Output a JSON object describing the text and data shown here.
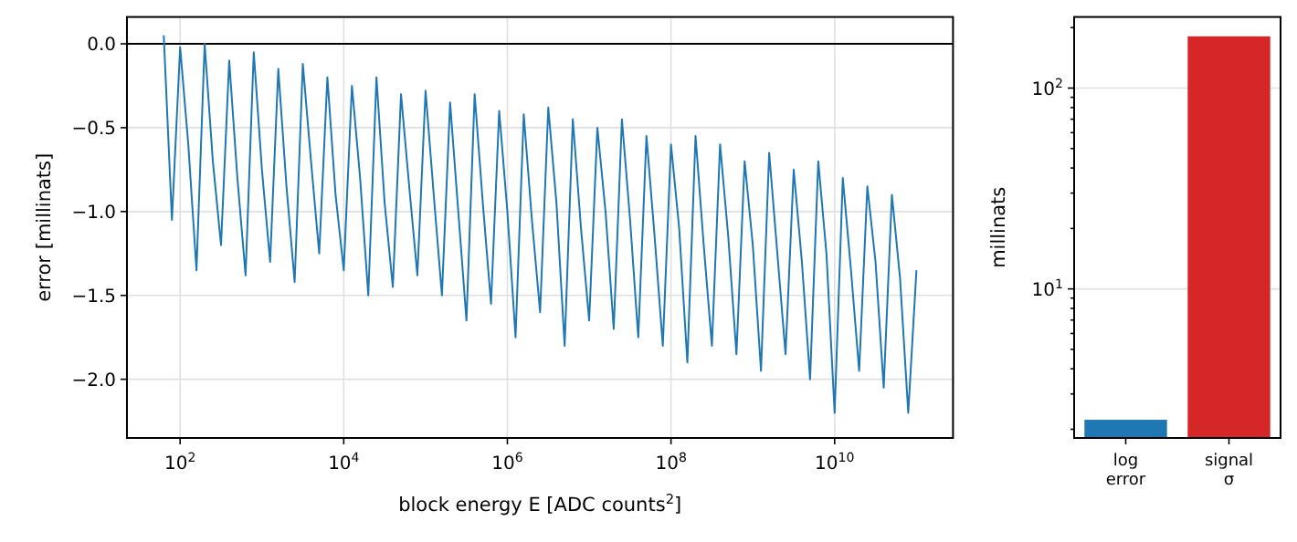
{
  "chart_data": [
    {
      "type": "line",
      "xlabel": "block energy E [ADC counts$^{2}$]",
      "ylabel": "error [millinats]",
      "x": [
        63.1,
        79.43,
        100.0,
        125.9,
        158.5,
        199.5,
        251.2,
        316.2,
        398.1,
        501.2,
        631.0,
        794.3,
        1000.0,
        1259.0,
        1585.0,
        1995.0,
        2512.0,
        3162.0,
        3981.0,
        5012.0,
        6310.0,
        7943.0,
        10000.0,
        12590.0,
        15850.0,
        19950.0,
        25120.0,
        31620.0,
        39810.0,
        50120.0,
        63100.0,
        79430.0,
        100000.0,
        125900.0,
        158500.0,
        199500.0,
        251200.0,
        316200.0,
        398100.0,
        501200.0,
        631000.0,
        794300.0,
        1000000.0,
        1259000.0,
        1585000.0,
        1995000.0,
        2512000.0,
        3162000.0,
        3981000.0,
        5012000.0,
        6310000.0,
        7943000.0,
        10000000.0,
        12590000.0,
        15850000.0,
        19950000.0,
        25120000.0,
        31620000.0,
        39810000.0,
        50120000.0,
        63100000.0,
        79430000.0,
        100000000.0,
        125900000.0,
        158500000.0,
        199500000.0,
        251200000.0,
        316200000.0,
        398100000.0,
        501200000.0,
        631000000.0,
        794300000.0,
        1000000000.0,
        1259000000.0,
        1585000000.0,
        1995000000.0,
        2512000000.0,
        3162000000.0,
        3981000000.0,
        5012000000.0,
        6310000000.0,
        7943000000.0,
        10000000000.0,
        12590000000.0,
        15850000000.0,
        19950000000.0,
        25120000000.0,
        31620000000.0,
        39810000000.0,
        50120000000.0,
        63100000000.0,
        79430000000.0,
        100000000000.0
      ],
      "values": [
        0.05,
        -1.05,
        -0.02,
        -0.6,
        -1.35,
        0.0,
        -0.7,
        -1.2,
        -0.1,
        -0.8,
        -1.38,
        -0.05,
        -0.75,
        -1.3,
        -0.15,
        -0.85,
        -1.42,
        -0.12,
        -0.7,
        -1.25,
        -0.2,
        -0.9,
        -1.35,
        -0.25,
        -0.8,
        -1.5,
        -0.2,
        -0.95,
        -1.45,
        -0.3,
        -0.85,
        -1.38,
        -0.28,
        -0.9,
        -1.5,
        -0.35,
        -1.0,
        -1.65,
        -0.3,
        -0.95,
        -1.55,
        -0.4,
        -1.0,
        -1.75,
        -0.42,
        -1.05,
        -1.6,
        -0.38,
        -0.95,
        -1.8,
        -0.45,
        -1.1,
        -1.65,
        -0.5,
        -1.0,
        -1.7,
        -0.45,
        -1.05,
        -1.75,
        -0.55,
        -1.15,
        -1.8,
        -0.6,
        -1.1,
        -1.9,
        -0.55,
        -1.2,
        -1.8,
        -0.6,
        -1.15,
        -1.85,
        -0.7,
        -1.2,
        -1.95,
        -0.65,
        -1.25,
        -1.85,
        -0.75,
        -1.3,
        -2.0,
        -0.7,
        -1.25,
        -2.2,
        -0.8,
        -1.35,
        -1.95,
        -0.85,
        -1.3,
        -2.05,
        -0.9,
        -1.4,
        -2.2,
        -1.35
      ],
      "color": "#1f77b4",
      "log": "x",
      "grid": true,
      "xlim": [
        22.4,
        280000000000.0
      ],
      "xticks": [
        {
          "value": 100.0,
          "label": "10$^{2}$"
        },
        {
          "value": 10000.0,
          "label": "10$^{4}$"
        },
        {
          "value": 1000000.0,
          "label": "10$^{6}$"
        },
        {
          "value": 100000000.0,
          "label": "10$^{8}$"
        },
        {
          "value": 10000000000.0,
          "label": "10$^{10}$"
        }
      ],
      "ylim": [
        -2.35,
        0.16
      ],
      "yticks": [
        {
          "value": -2,
          "label": "−2.0"
        },
        {
          "value": -1.5,
          "label": "−1.5"
        },
        {
          "value": -1,
          "label": "−1.0"
        },
        {
          "value": -0.5,
          "label": "−0.5"
        },
        {
          "value": 0,
          "label": "0.0"
        }
      ],
      "ref_lines": [
        {
          "axis": "y",
          "value": 0,
          "color": "#000000"
        }
      ]
    },
    {
      "type": "bar",
      "ylabel": "millinats",
      "categories": [
        "log error",
        "signal σ"
      ],
      "values": [
        2.23,
        181
      ],
      "colors": [
        "#1f77b4",
        "#d62728"
      ],
      "log": true,
      "grid": "y",
      "ylim": [
        1.81,
        226
      ],
      "yticks": [
        {
          "value": 2,
          "label": null
        },
        {
          "value": 3,
          "label": null
        },
        {
          "value": 4,
          "label": null
        },
        {
          "value": 5,
          "label": null
        },
        {
          "value": 6,
          "label": null
        },
        {
          "value": 7,
          "label": null
        },
        {
          "value": 8,
          "label": null
        },
        {
          "value": 9,
          "label": null
        },
        {
          "value": 10,
          "label": "10$^{1}$"
        },
        {
          "value": 20,
          "label": null
        },
        {
          "value": 30,
          "label": null
        },
        {
          "value": 40,
          "label": null
        },
        {
          "value": 50,
          "label": null
        },
        {
          "value": 60,
          "label": null
        },
        {
          "value": 70,
          "label": null
        },
        {
          "value": 80,
          "label": null
        },
        {
          "value": 90,
          "label": null
        },
        {
          "value": 100,
          "label": "10$^{2}$"
        },
        {
          "value": 200,
          "label": null
        }
      ]
    }
  ]
}
